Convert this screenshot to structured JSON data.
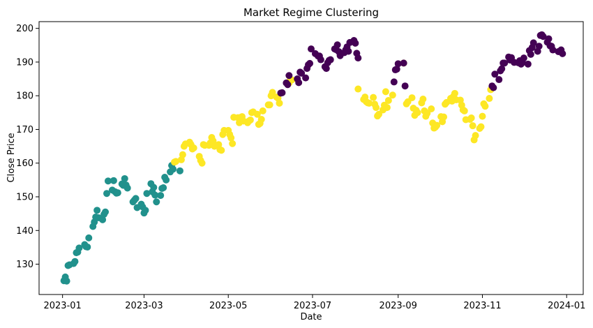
{
  "chart_data": {
    "type": "scatter",
    "title": "Market Regime Clustering",
    "xlabel": "Date",
    "ylabel": "Close Price",
    "x_tick_labels": [
      "2023-01",
      "2023-03",
      "2023-05",
      "2023-07",
      "2023-09",
      "2023-11",
      "2024-01"
    ],
    "x_ticks": [
      "2023-01-01",
      "2023-03-01",
      "2023-05-01",
      "2023-07-01",
      "2023-09-01",
      "2023-11-01",
      "2024-01-01"
    ],
    "y_ticks": [
      130,
      140,
      150,
      160,
      170,
      180,
      190,
      200
    ],
    "xlim": [
      "2022-12-15",
      "2024-01-13"
    ],
    "ylim": [
      121,
      202
    ],
    "grid": false,
    "cluster_colors": {
      "0": "#440154",
      "1": "#21918c",
      "2": "#fde725"
    },
    "series": [
      {
        "cluster": 1,
        "color": "#21918c",
        "points": [
          [
            "2023-01-02",
            125.1
          ],
          [
            "2023-01-03",
            126.2
          ],
          [
            "2023-01-04",
            125.0
          ],
          [
            "2023-01-05",
            129.6
          ],
          [
            "2023-01-06",
            129.8
          ],
          [
            "2023-01-09",
            130.2
          ],
          [
            "2023-01-10",
            130.8
          ],
          [
            "2023-01-11",
            133.4
          ],
          [
            "2023-01-12",
            133.6
          ],
          [
            "2023-01-13",
            134.8
          ],
          [
            "2023-01-17",
            135.8
          ],
          [
            "2023-01-18",
            135.2
          ],
          [
            "2023-01-19",
            135.1
          ],
          [
            "2023-01-20",
            137.8
          ],
          [
            "2023-01-23",
            141.2
          ],
          [
            "2023-01-24",
            142.5
          ],
          [
            "2023-01-25",
            144.0
          ],
          [
            "2023-01-26",
            146.0
          ],
          [
            "2023-01-27",
            143.8
          ],
          [
            "2023-01-30",
            143.2
          ],
          [
            "2023-01-31",
            144.8
          ],
          [
            "2023-02-01",
            145.5
          ],
          [
            "2023-02-02",
            151.0
          ],
          [
            "2023-02-03",
            154.7
          ],
          [
            "2023-02-06",
            152.0
          ],
          [
            "2023-02-07",
            154.8
          ],
          [
            "2023-02-08",
            151.5
          ],
          [
            "2023-02-09",
            151.1
          ],
          [
            "2023-02-10",
            151.2
          ],
          [
            "2023-02-13",
            153.8
          ],
          [
            "2023-02-14",
            153.4
          ],
          [
            "2023-02-15",
            155.4
          ],
          [
            "2023-02-16",
            153.5
          ],
          [
            "2023-02-17",
            152.6
          ],
          [
            "2023-02-21",
            148.5
          ],
          [
            "2023-02-22",
            149.0
          ],
          [
            "2023-02-23",
            149.5
          ],
          [
            "2023-02-24",
            146.8
          ],
          [
            "2023-02-27",
            147.8
          ],
          [
            "2023-02-28",
            147.0
          ],
          [
            "2023-03-01",
            145.2
          ],
          [
            "2023-03-02",
            146.0
          ],
          [
            "2023-03-03",
            151.0
          ],
          [
            "2023-03-06",
            153.9
          ],
          [
            "2023-03-07",
            151.5
          ],
          [
            "2023-03-08",
            152.8
          ],
          [
            "2023-03-09",
            150.5
          ],
          [
            "2023-03-10",
            148.5
          ],
          [
            "2023-03-13",
            150.4
          ],
          [
            "2023-03-14",
            152.5
          ],
          [
            "2023-03-15",
            152.7
          ],
          [
            "2023-03-16",
            155.8
          ],
          [
            "2023-03-17",
            155.0
          ],
          [
            "2023-03-20",
            157.4
          ],
          [
            "2023-03-21",
            159.3
          ],
          [
            "2023-03-22",
            158.2
          ],
          [
            "2023-03-27",
            157.7
          ]
        ]
      },
      {
        "cluster": 2,
        "color": "#fde725",
        "points": [
          [
            "2023-03-23",
            160.3
          ],
          [
            "2023-03-24",
            160.5
          ],
          [
            "2023-03-28",
            161.0
          ],
          [
            "2023-03-29",
            162.5
          ],
          [
            "2023-03-30",
            165.0
          ],
          [
            "2023-03-31",
            165.7
          ],
          [
            "2023-04-03",
            166.2
          ],
          [
            "2023-04-04",
            165.5
          ],
          [
            "2023-04-05",
            164.2
          ],
          [
            "2023-04-06",
            164.5
          ],
          [
            "2023-04-10",
            162.0
          ],
          [
            "2023-04-11",
            160.8
          ],
          [
            "2023-04-12",
            160.0
          ],
          [
            "2023-04-13",
            165.5
          ],
          [
            "2023-04-14",
            165.3
          ],
          [
            "2023-04-17",
            165.3
          ],
          [
            "2023-04-18",
            166.0
          ],
          [
            "2023-04-19",
            167.6
          ],
          [
            "2023-04-20",
            166.6
          ],
          [
            "2023-04-21",
            165.0
          ],
          [
            "2023-04-24",
            165.5
          ],
          [
            "2023-04-25",
            164.0
          ],
          [
            "2023-04-26",
            163.8
          ],
          [
            "2023-04-27",
            168.5
          ],
          [
            "2023-04-28",
            169.7
          ],
          [
            "2023-05-01",
            169.7
          ],
          [
            "2023-05-02",
            168.5
          ],
          [
            "2023-05-03",
            167.5
          ],
          [
            "2023-05-04",
            165.8
          ],
          [
            "2023-05-05",
            173.6
          ],
          [
            "2023-05-08",
            173.5
          ],
          [
            "2023-05-09",
            172.0
          ],
          [
            "2023-05-10",
            173.6
          ],
          [
            "2023-05-11",
            173.8
          ],
          [
            "2023-05-12",
            172.5
          ],
          [
            "2023-05-15",
            172.0
          ],
          [
            "2023-05-16",
            172.5
          ],
          [
            "2023-05-17",
            172.8
          ],
          [
            "2023-05-18",
            175.0
          ],
          [
            "2023-05-19",
            175.2
          ],
          [
            "2023-05-22",
            174.5
          ],
          [
            "2023-05-23",
            171.5
          ],
          [
            "2023-05-24",
            171.8
          ],
          [
            "2023-05-25",
            173.0
          ],
          [
            "2023-05-26",
            175.5
          ],
          [
            "2023-05-30",
            177.3
          ],
          [
            "2023-05-31",
            177.3
          ],
          [
            "2023-06-01",
            180.0
          ],
          [
            "2023-06-02",
            181.0
          ],
          [
            "2023-06-05",
            179.6
          ],
          [
            "2023-06-06",
            179.3
          ],
          [
            "2023-06-07",
            177.8
          ],
          [
            "2023-06-13",
            183.5
          ],
          [
            "2023-06-14",
            183.8
          ],
          [
            "2023-06-15",
            184.8
          ],
          [
            "2023-06-16",
            184.7
          ],
          [
            "2023-08-03",
            182.0
          ],
          [
            "2023-08-07",
            178.9
          ],
          [
            "2023-08-08",
            179.6
          ],
          [
            "2023-08-09",
            178.2
          ],
          [
            "2023-08-10",
            177.9
          ],
          [
            "2023-08-11",
            177.8
          ],
          [
            "2023-08-14",
            179.5
          ],
          [
            "2023-08-15",
            177.5
          ],
          [
            "2023-08-16",
            176.5
          ],
          [
            "2023-08-17",
            174.0
          ],
          [
            "2023-08-18",
            174.5
          ],
          [
            "2023-08-21",
            175.8
          ],
          [
            "2023-08-22",
            177.2
          ],
          [
            "2023-08-23",
            181.2
          ],
          [
            "2023-08-24",
            176.5
          ],
          [
            "2023-08-25",
            178.6
          ],
          [
            "2023-08-28",
            180.2
          ],
          [
            "2023-09-05",
            189.7
          ],
          [
            "2023-09-07",
            177.6
          ],
          [
            "2023-09-08",
            178.2
          ],
          [
            "2023-09-11",
            179.4
          ],
          [
            "2023-09-12",
            176.3
          ],
          [
            "2023-09-13",
            174.2
          ],
          [
            "2023-09-14",
            175.7
          ],
          [
            "2023-09-15",
            175.0
          ],
          [
            "2023-09-18",
            177.9
          ],
          [
            "2023-09-19",
            179.0
          ],
          [
            "2023-09-20",
            175.5
          ],
          [
            "2023-09-21",
            173.9
          ],
          [
            "2023-09-22",
            174.8
          ],
          [
            "2023-09-25",
            176.1
          ],
          [
            "2023-09-26",
            171.9
          ],
          [
            "2023-09-27",
            170.4
          ],
          [
            "2023-09-28",
            170.7
          ],
          [
            "2023-09-29",
            171.2
          ],
          [
            "2023-10-02",
            173.8
          ],
          [
            "2023-10-03",
            172.3
          ],
          [
            "2023-10-04",
            173.7
          ],
          [
            "2023-10-05",
            177.5
          ],
          [
            "2023-10-06",
            178.0
          ],
          [
            "2023-10-09",
            179.2
          ],
          [
            "2023-10-10",
            178.4
          ],
          [
            "2023-10-11",
            179.8
          ],
          [
            "2023-10-12",
            180.7
          ],
          [
            "2023-10-13",
            178.8
          ],
          [
            "2023-10-16",
            178.7
          ],
          [
            "2023-10-17",
            177.2
          ],
          [
            "2023-10-18",
            175.8
          ],
          [
            "2023-10-19",
            175.5
          ],
          [
            "2023-10-20",
            172.9
          ],
          [
            "2023-10-23",
            173.0
          ],
          [
            "2023-10-24",
            173.4
          ],
          [
            "2023-10-25",
            171.1
          ],
          [
            "2023-10-26",
            166.9
          ],
          [
            "2023-10-27",
            168.2
          ],
          [
            "2023-10-30",
            170.3
          ],
          [
            "2023-10-31",
            170.8
          ],
          [
            "2023-11-01",
            173.9
          ],
          [
            "2023-11-02",
            177.6
          ],
          [
            "2023-11-03",
            176.9
          ],
          [
            "2023-11-06",
            179.2
          ],
          [
            "2023-11-07",
            181.8
          ]
        ]
      },
      {
        "cluster": 0,
        "color": "#440154",
        "points": [
          [
            "2023-06-08",
            180.8
          ],
          [
            "2023-06-09",
            180.9
          ],
          [
            "2023-06-12",
            183.8
          ],
          [
            "2023-06-13",
            183.3
          ],
          [
            "2023-06-14",
            186.0
          ],
          [
            "2023-06-20",
            185.0
          ],
          [
            "2023-06-21",
            183.9
          ],
          [
            "2023-06-22",
            187.0
          ],
          [
            "2023-06-23",
            186.7
          ],
          [
            "2023-06-26",
            185.3
          ],
          [
            "2023-06-27",
            188.1
          ],
          [
            "2023-06-28",
            189.2
          ],
          [
            "2023-06-29",
            189.6
          ],
          [
            "2023-06-30",
            193.9
          ],
          [
            "2023-07-03",
            192.5
          ],
          [
            "2023-07-05",
            191.8
          ],
          [
            "2023-07-06",
            191.8
          ],
          [
            "2023-07-07",
            190.7
          ],
          [
            "2023-07-10",
            188.6
          ],
          [
            "2023-07-11",
            188.1
          ],
          [
            "2023-07-12",
            189.8
          ],
          [
            "2023-07-13",
            190.5
          ],
          [
            "2023-07-14",
            190.7
          ],
          [
            "2023-07-17",
            193.9
          ],
          [
            "2023-07-18",
            193.7
          ],
          [
            "2023-07-19",
            195.1
          ],
          [
            "2023-07-20",
            193.1
          ],
          [
            "2023-07-21",
            191.9
          ],
          [
            "2023-07-24",
            192.8
          ],
          [
            "2023-07-25",
            193.6
          ],
          [
            "2023-07-26",
            194.5
          ],
          [
            "2023-07-27",
            193.2
          ],
          [
            "2023-07-28",
            195.8
          ],
          [
            "2023-07-31",
            196.4
          ],
          [
            "2023-08-01",
            195.6
          ],
          [
            "2023-08-02",
            192.6
          ],
          [
            "2023-08-03",
            191.2
          ],
          [
            "2023-08-29",
            184.1
          ],
          [
            "2023-08-30",
            187.7
          ],
          [
            "2023-08-31",
            187.9
          ],
          [
            "2023-09-01",
            189.5
          ],
          [
            "2023-09-05",
            189.7
          ],
          [
            "2023-09-06",
            182.9
          ],
          [
            "2023-11-08",
            182.9
          ],
          [
            "2023-11-09",
            182.4
          ],
          [
            "2023-11-10",
            186.4
          ],
          [
            "2023-11-13",
            184.8
          ],
          [
            "2023-11-14",
            187.4
          ],
          [
            "2023-11-15",
            188.0
          ],
          [
            "2023-11-16",
            189.7
          ],
          [
            "2023-11-17",
            189.7
          ],
          [
            "2023-11-20",
            191.5
          ],
          [
            "2023-11-21",
            190.6
          ],
          [
            "2023-11-22",
            191.3
          ],
          [
            "2023-11-24",
            189.9
          ],
          [
            "2023-11-27",
            189.8
          ],
          [
            "2023-11-28",
            190.4
          ],
          [
            "2023-11-29",
            189.4
          ],
          [
            "2023-11-30",
            189.9
          ],
          [
            "2023-12-01",
            191.2
          ],
          [
            "2023-12-04",
            189.4
          ],
          [
            "2023-12-05",
            193.4
          ],
          [
            "2023-12-06",
            192.3
          ],
          [
            "2023-12-07",
            194.3
          ],
          [
            "2023-12-08",
            195.7
          ],
          [
            "2023-12-11",
            193.2
          ],
          [
            "2023-12-12",
            194.7
          ],
          [
            "2023-12-13",
            197.9
          ],
          [
            "2023-12-14",
            198.1
          ],
          [
            "2023-12-15",
            197.6
          ],
          [
            "2023-12-18",
            195.9
          ],
          [
            "2023-12-19",
            196.9
          ],
          [
            "2023-12-20",
            194.8
          ],
          [
            "2023-12-21",
            194.7
          ],
          [
            "2023-12-22",
            193.6
          ],
          [
            "2023-12-26",
            193.1
          ],
          [
            "2023-12-27",
            193.2
          ],
          [
            "2023-12-28",
            193.6
          ],
          [
            "2023-12-29",
            192.5
          ]
        ]
      }
    ]
  }
}
